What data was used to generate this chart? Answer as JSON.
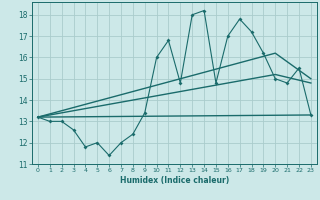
{
  "xlabel": "Humidex (Indice chaleur)",
  "bg_color": "#cce8e8",
  "grid_color": "#aacccc",
  "line_color": "#1a6b6b",
  "xlim": [
    -0.5,
    23.5
  ],
  "ylim": [
    11,
    18.6
  ],
  "xticks": [
    0,
    1,
    2,
    3,
    4,
    5,
    6,
    7,
    8,
    9,
    10,
    11,
    12,
    13,
    14,
    15,
    16,
    17,
    18,
    19,
    20,
    21,
    22,
    23
  ],
  "yticks": [
    11,
    12,
    13,
    14,
    15,
    16,
    17,
    18
  ],
  "series1_x": [
    0,
    1,
    2,
    3,
    4,
    5,
    6,
    7,
    8,
    9,
    10,
    11,
    12,
    13,
    14,
    15,
    16,
    17,
    18,
    19,
    20,
    21,
    22,
    23
  ],
  "series1_y": [
    13.2,
    13.0,
    13.0,
    12.6,
    11.8,
    12.0,
    11.4,
    12.0,
    12.4,
    13.4,
    16.0,
    16.8,
    14.8,
    18.0,
    18.2,
    14.8,
    17.0,
    17.8,
    17.2,
    16.2,
    15.0,
    14.8,
    15.5,
    13.3
  ],
  "series2_x": [
    0,
    23
  ],
  "series2_y": [
    13.2,
    13.3
  ],
  "series3_x": [
    0,
    20,
    23
  ],
  "series3_y": [
    13.2,
    16.2,
    15.0
  ],
  "series4_x": [
    0,
    20,
    23
  ],
  "series4_y": [
    13.2,
    15.2,
    14.8
  ]
}
